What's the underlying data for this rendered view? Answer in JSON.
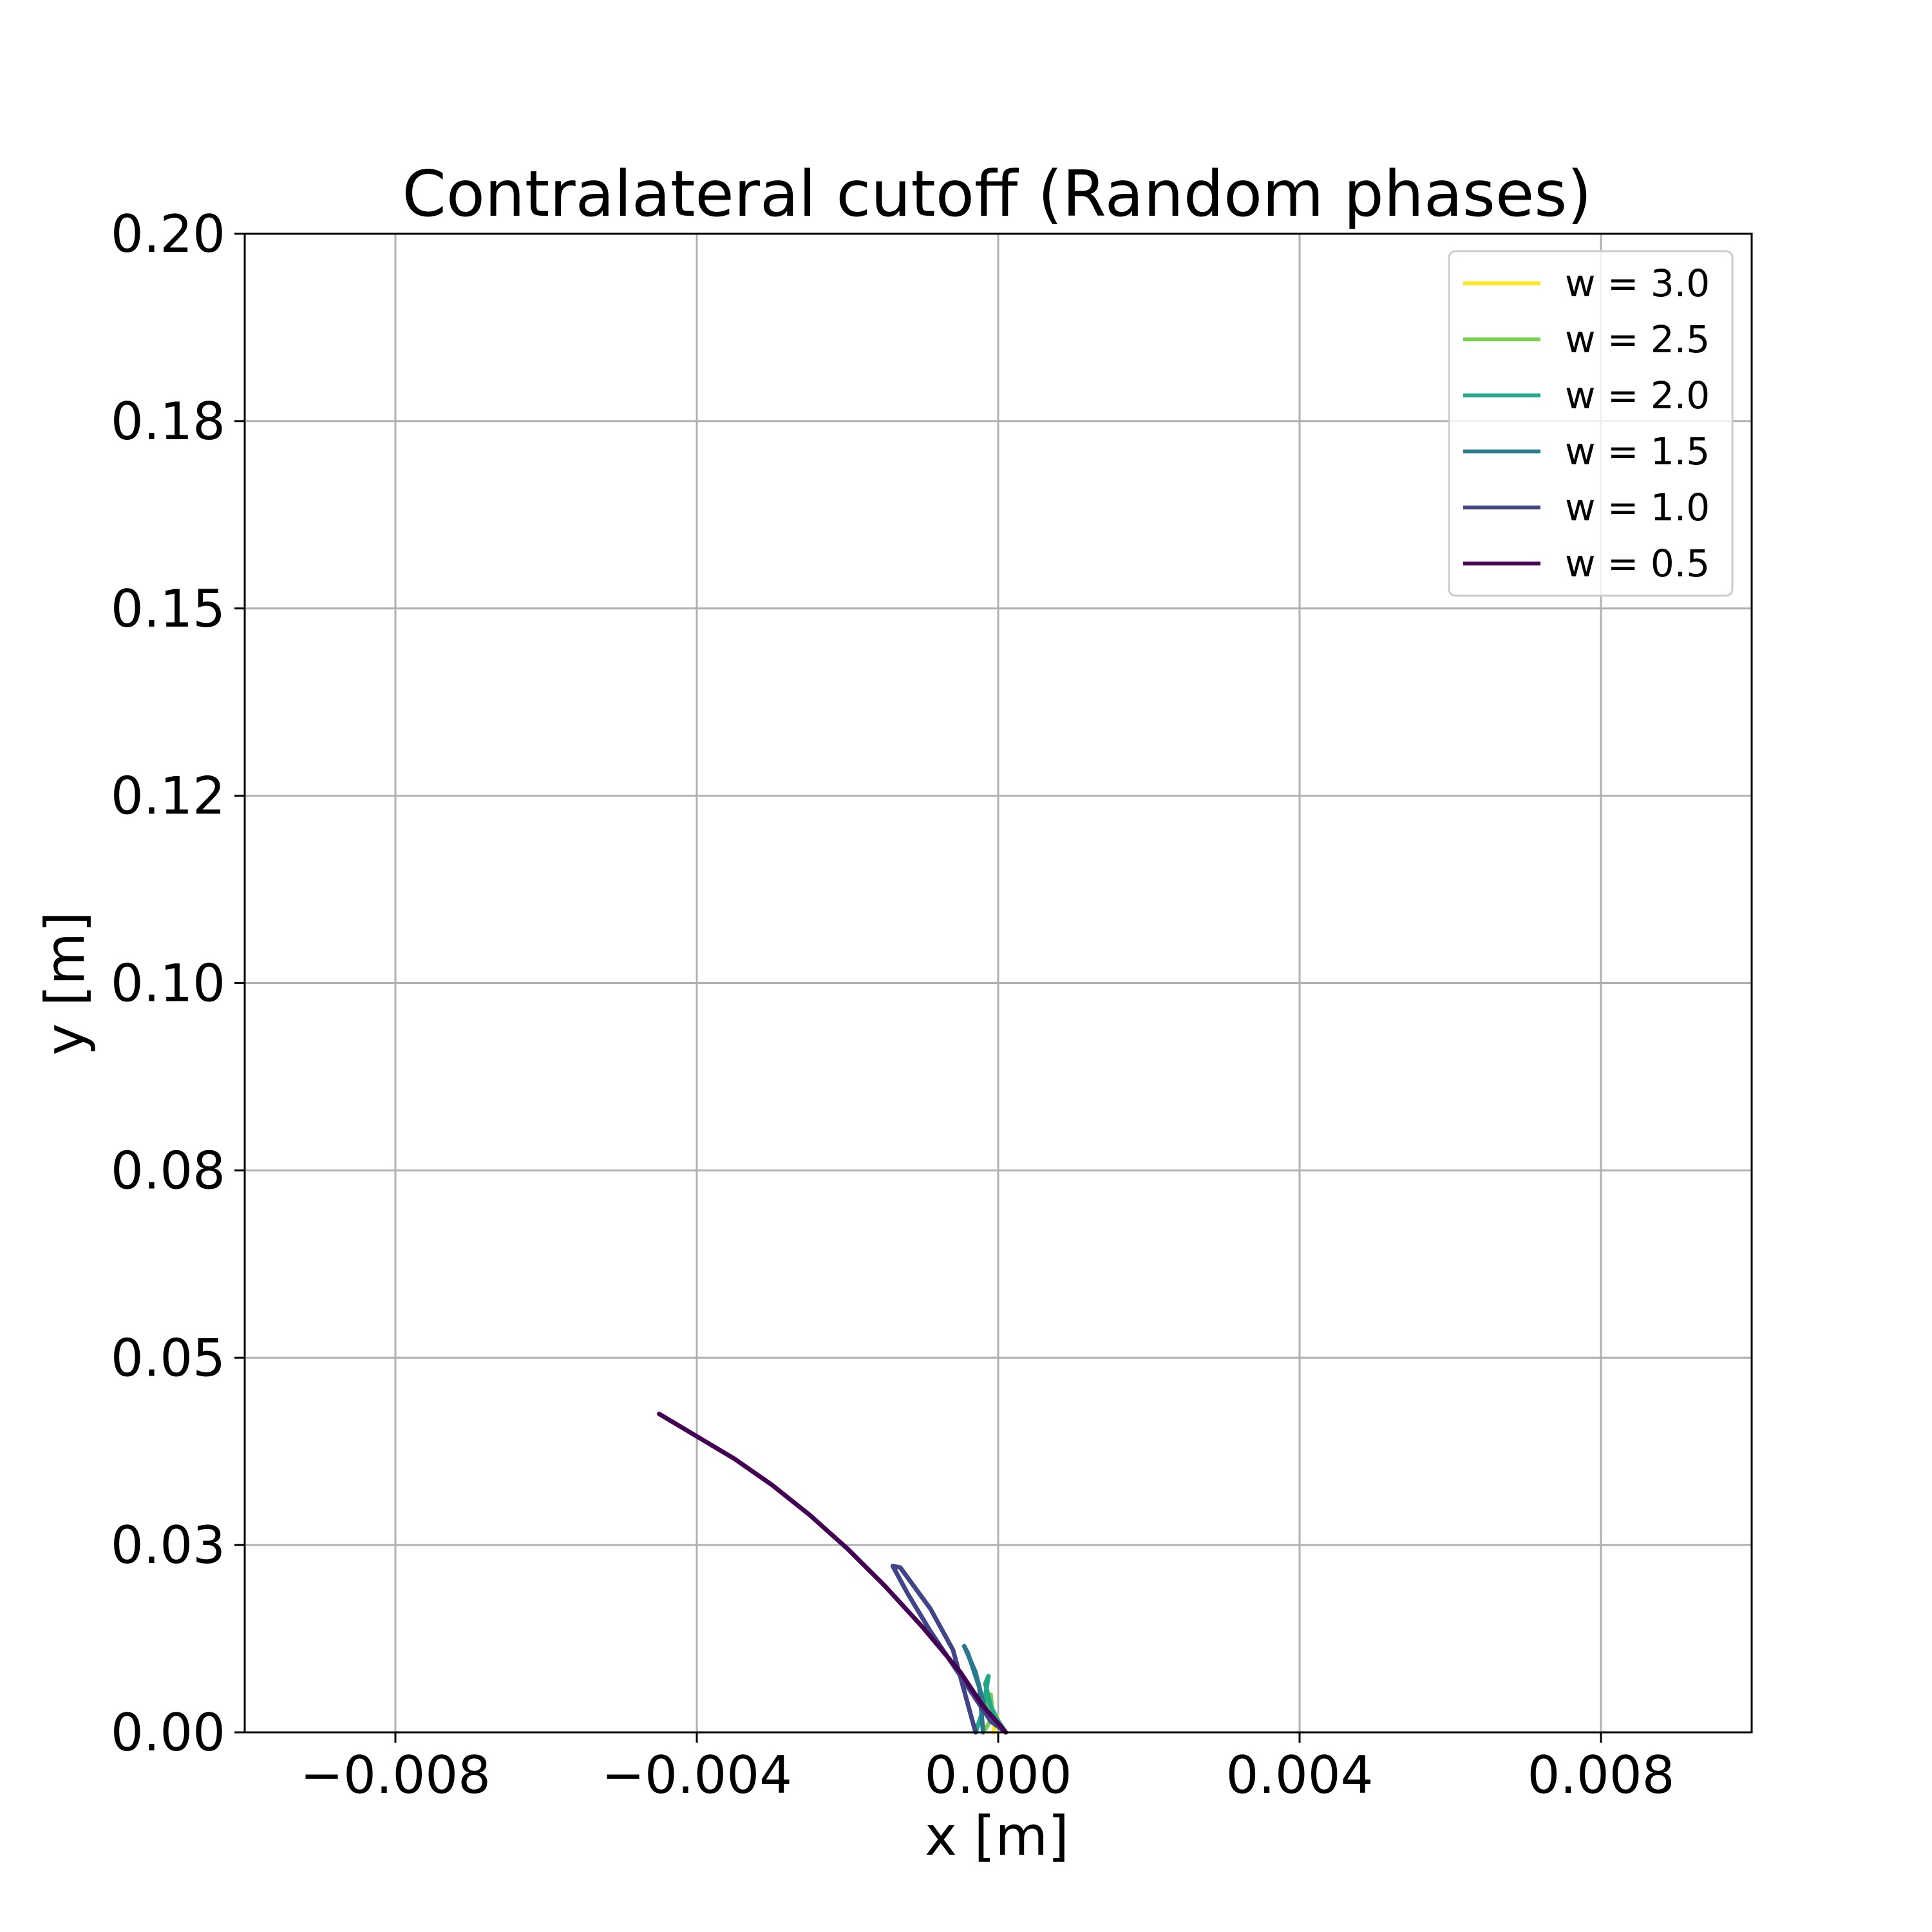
{
  "chart_data": {
    "type": "line",
    "title": "Contralateral cutoff (Random phases)",
    "xlabel": "x [m]",
    "ylabel": "y [m]",
    "xlim": [
      -0.01,
      0.01
    ],
    "ylim": [
      0.0,
      0.2
    ],
    "x_ticks": [
      -0.008,
      -0.004,
      0.0,
      0.004,
      0.008
    ],
    "x_tick_labels": [
      "−0.008",
      "−0.004",
      "0.000",
      "0.004",
      "0.008"
    ],
    "y_ticks": [
      0.0,
      0.025,
      0.05,
      0.075,
      0.1,
      0.125,
      0.15,
      0.175,
      0.2
    ],
    "y_tick_labels": [
      "0.00",
      "0.03",
      "0.05",
      "0.08",
      "0.10",
      "0.12",
      "0.15",
      "0.18",
      "0.20"
    ],
    "grid": true,
    "legend_position": "top-right",
    "series": [
      {
        "name": "w = 3.0",
        "color": "#fde725",
        "x": [
          0.0001,
          5e-05,
          0.0,
          -2e-05,
          -4e-05,
          -6e-05
        ],
        "y": [
          0.0,
          0.0008,
          0.0015,
          0.0022,
          0.0012,
          0.0
        ]
      },
      {
        "name": "w = 2.5",
        "color": "#7ad151",
        "x": [
          0.0001,
          0.0,
          -0.0001,
          -0.00015,
          -0.0001,
          -7e-05,
          -0.0002
        ],
        "y": [
          0.0,
          0.0012,
          0.0025,
          0.0045,
          0.005,
          0.002,
          0.0
        ]
      },
      {
        "name": "w = 2.0",
        "color": "#22a884",
        "x": [
          0.0001,
          0.0,
          -0.0001,
          -0.00017,
          -0.00013,
          -0.0002,
          -0.0003
        ],
        "y": [
          0.0,
          0.0015,
          0.0035,
          0.0065,
          0.0075,
          0.003,
          0.0
        ]
      },
      {
        "name": "w = 1.5",
        "color": "#2a788e",
        "x": [
          0.0001,
          -0.0001,
          -0.0002,
          -0.0003,
          -0.00045,
          -0.0004,
          -0.00025,
          -0.0002
        ],
        "y": [
          0.0,
          0.0015,
          0.004,
          0.008,
          0.0115,
          0.0105,
          0.006,
          0.0
        ]
      },
      {
        "name": "w = 1.0",
        "color": "#414487",
        "x": [
          0.0001,
          -0.0001,
          -0.0003,
          -0.0006,
          -0.0009,
          -0.0012,
          -0.0014,
          -0.0013,
          -0.0009,
          -0.0006,
          -0.0003
        ],
        "y": [
          0.0,
          0.0015,
          0.0045,
          0.009,
          0.0135,
          0.0185,
          0.0222,
          0.022,
          0.0165,
          0.011,
          0.0
        ]
      },
      {
        "name": "w = 0.5",
        "color": "#440154",
        "x": [
          0.0001,
          0.0,
          -0.0002,
          -0.0005,
          -0.001,
          -0.0015,
          -0.002,
          -0.0025,
          -0.003,
          -0.0035,
          -0.004,
          -0.0045
        ],
        "y": [
          0.0,
          0.0012,
          0.0035,
          0.008,
          0.014,
          0.0195,
          0.0245,
          0.029,
          0.033,
          0.0365,
          0.0395,
          0.0425
        ]
      }
    ]
  }
}
